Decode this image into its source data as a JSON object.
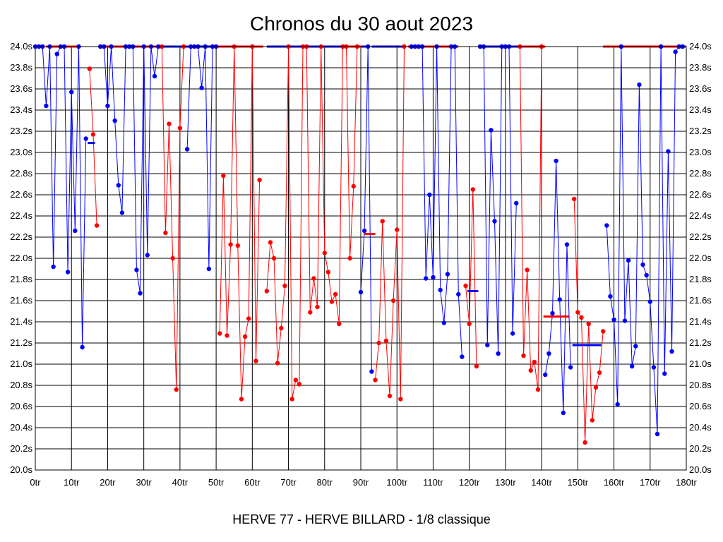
{
  "chart_data": {
    "type": "line",
    "title": "Chronos du 30 aout 2023",
    "subtitle": "HERVE 77 - HERVE BILLARD - 1/8 classique",
    "xlim": [
      0,
      180
    ],
    "ylim": [
      20.0,
      24.0
    ],
    "x_ticks": [
      0,
      10,
      20,
      30,
      40,
      50,
      60,
      70,
      80,
      90,
      100,
      110,
      120,
      130,
      140,
      150,
      160,
      170,
      180
    ],
    "x_tick_suffix": "tr",
    "y_ticks": [
      20.0,
      20.2,
      20.4,
      20.6,
      20.8,
      21.0,
      21.2,
      21.4,
      21.6,
      21.8,
      22.0,
      22.2,
      22.4,
      22.6,
      22.8,
      23.0,
      23.2,
      23.4,
      23.6,
      23.8,
      24.0
    ],
    "y_tick_suffix": "s",
    "grid": true,
    "colors": {
      "blue": "#0000ff",
      "red": "#ff0000",
      "grid": "#000000"
    },
    "segments": [
      {
        "color": "blue",
        "points": [
          [
            0,
            24.0
          ],
          [
            1,
            24.0
          ],
          [
            2,
            24.0
          ],
          [
            3,
            23.44
          ],
          [
            4,
            24.0
          ],
          [
            5,
            21.92
          ],
          [
            6,
            23.93
          ],
          [
            7,
            24.0
          ],
          [
            8,
            24.0
          ],
          [
            9,
            21.87
          ],
          [
            10,
            23.57
          ],
          [
            11,
            22.26
          ],
          [
            12,
            24.0
          ],
          [
            13,
            21.16
          ],
          [
            14,
            23.13
          ]
        ]
      },
      {
        "color": "red",
        "points": [
          [
            15,
            23.79
          ],
          [
            16,
            23.17
          ],
          [
            17,
            22.31
          ]
        ]
      },
      {
        "color": "blue",
        "points": [
          [
            18,
            24.0
          ],
          [
            19,
            24.0
          ],
          [
            20,
            23.44
          ],
          [
            21,
            24.0
          ],
          [
            22,
            23.3
          ],
          [
            23,
            22.69
          ],
          [
            24,
            22.43
          ],
          [
            25,
            24.0
          ],
          [
            26,
            24.0
          ],
          [
            27,
            24.0
          ],
          [
            28,
            21.89
          ],
          [
            29,
            21.67
          ],
          [
            30,
            24.0
          ],
          [
            31,
            22.03
          ],
          [
            32,
            24.0
          ],
          [
            33,
            23.72
          ],
          [
            34,
            24.0
          ]
        ]
      },
      {
        "color": "red",
        "points": [
          [
            35,
            24.0
          ],
          [
            36,
            22.24
          ],
          [
            37,
            23.27
          ],
          [
            38,
            22.0
          ],
          [
            39,
            20.76
          ],
          [
            40,
            23.23
          ],
          [
            41,
            24.0
          ]
        ]
      },
      {
        "color": "blue",
        "points": [
          [
            42,
            23.03
          ],
          [
            43,
            24.0
          ],
          [
            44,
            24.0
          ],
          [
            45,
            24.0
          ],
          [
            46,
            23.61
          ],
          [
            47,
            24.0
          ],
          [
            48,
            21.9
          ],
          [
            49,
            24.0
          ],
          [
            50,
            24.0
          ]
        ]
      },
      {
        "color": "red",
        "points": [
          [
            51,
            21.29
          ],
          [
            52,
            22.78
          ],
          [
            53,
            21.27
          ],
          [
            54,
            22.13
          ],
          [
            55,
            24.0
          ],
          [
            56,
            22.12
          ],
          [
            57,
            20.67
          ],
          [
            58,
            21.26
          ],
          [
            59,
            21.43
          ],
          [
            60,
            24.0
          ],
          [
            61,
            21.03
          ],
          [
            62,
            22.74
          ]
        ]
      },
      {
        "color": "red",
        "points": [
          [
            64,
            21.69
          ],
          [
            65,
            22.15
          ],
          [
            66,
            22.0
          ],
          [
            67,
            21.01
          ],
          [
            68,
            21.34
          ],
          [
            69,
            21.74
          ],
          [
            70,
            24.0
          ],
          [
            71,
            20.67
          ],
          [
            72,
            20.85
          ],
          [
            73,
            20.81
          ],
          [
            74,
            24.0
          ],
          [
            75,
            24.0
          ],
          [
            76,
            21.49
          ],
          [
            77,
            21.81
          ],
          [
            78,
            21.54
          ],
          [
            79,
            24.0
          ],
          [
            80,
            22.05
          ],
          [
            81,
            21.87
          ],
          [
            82,
            21.59
          ],
          [
            83,
            21.66
          ],
          [
            84,
            21.38
          ],
          [
            85,
            24.0
          ],
          [
            86,
            24.0
          ],
          [
            87,
            22.0
          ],
          [
            88,
            22.68
          ],
          [
            89,
            24.0
          ]
        ]
      },
      {
        "color": "blue",
        "points": [
          [
            90,
            21.68
          ],
          [
            91,
            22.26
          ],
          [
            92,
            24.0
          ],
          [
            93,
            20.93
          ]
        ]
      },
      {
        "color": "red",
        "points": [
          [
            94,
            20.85
          ],
          [
            95,
            21.2
          ],
          [
            96,
            22.35
          ],
          [
            97,
            21.22
          ],
          [
            98,
            20.7
          ],
          [
            99,
            21.6
          ],
          [
            100,
            22.27
          ],
          [
            101,
            20.67
          ],
          [
            102,
            24.0
          ]
        ]
      },
      {
        "color": "blue",
        "points": [
          [
            104,
            24.0
          ],
          [
            105,
            24.0
          ],
          [
            106,
            24.0
          ],
          [
            107,
            24.0
          ],
          [
            108,
            21.81
          ],
          [
            109,
            22.6
          ],
          [
            110,
            21.82
          ],
          [
            111,
            24.0
          ],
          [
            112,
            21.7
          ],
          [
            113,
            21.39
          ],
          [
            114,
            21.85
          ],
          [
            115,
            24.0
          ],
          [
            116,
            24.0
          ],
          [
            117,
            21.66
          ],
          [
            118,
            21.07
          ]
        ]
      },
      {
        "color": "red",
        "points": [
          [
            119,
            21.74
          ],
          [
            120,
            21.38
          ],
          [
            121,
            22.65
          ],
          [
            122,
            20.98
          ]
        ]
      },
      {
        "color": "blue",
        "points": [
          [
            123,
            24.0
          ],
          [
            124,
            24.0
          ],
          [
            125,
            21.18
          ],
          [
            126,
            23.21
          ],
          [
            127,
            22.35
          ],
          [
            128,
            21.1
          ],
          [
            129,
            24.0
          ],
          [
            130,
            24.0
          ],
          [
            131,
            24.0
          ],
          [
            132,
            21.29
          ],
          [
            133,
            22.52
          ]
        ]
      },
      {
        "color": "red",
        "points": [
          [
            134,
            24.0
          ],
          [
            135,
            21.08
          ],
          [
            136,
            21.89
          ],
          [
            137,
            20.94
          ],
          [
            138,
            21.02
          ],
          [
            139,
            20.76
          ],
          [
            140,
            24.0
          ]
        ]
      },
      {
        "color": "blue",
        "points": [
          [
            141,
            20.9
          ],
          [
            142,
            21.1
          ],
          [
            143,
            21.48
          ],
          [
            144,
            22.92
          ],
          [
            145,
            21.61
          ],
          [
            146,
            20.54
          ],
          [
            147,
            22.13
          ],
          [
            148,
            20.97
          ]
        ]
      },
      {
        "color": "red",
        "points": [
          [
            149,
            22.56
          ],
          [
            150,
            21.49
          ],
          [
            151,
            21.44
          ],
          [
            152,
            20.26
          ],
          [
            153,
            21.38
          ],
          [
            154,
            20.47
          ],
          [
            155,
            20.78
          ],
          [
            156,
            20.92
          ],
          [
            157,
            21.31
          ]
        ]
      },
      {
        "color": "blue",
        "points": [
          [
            158,
            22.31
          ],
          [
            159,
            21.64
          ],
          [
            160,
            21.42
          ],
          [
            161,
            20.62
          ],
          [
            162,
            24.0
          ],
          [
            163,
            21.41
          ],
          [
            164,
            21.98
          ],
          [
            165,
            20.98
          ],
          [
            166,
            21.17
          ],
          [
            167,
            23.64
          ],
          [
            168,
            21.94
          ],
          [
            169,
            21.84
          ],
          [
            170,
            21.59
          ],
          [
            171,
            20.97
          ],
          [
            172,
            20.34
          ],
          [
            173,
            24.0
          ],
          [
            174,
            20.91
          ],
          [
            175,
            23.01
          ],
          [
            176,
            21.12
          ],
          [
            177,
            23.95
          ],
          [
            178,
            24.0
          ],
          [
            179,
            24.0
          ]
        ]
      }
    ],
    "averages": [
      {
        "color": "blue",
        "x": [
          14.5,
          16.5
        ],
        "y": 23.09
      },
      {
        "color": "red",
        "x": [
          91,
          94
        ],
        "y": 22.23
      },
      {
        "color": "blue",
        "x": [
          119.5,
          122.5
        ],
        "y": 21.69
      },
      {
        "color": "red",
        "x": [
          140.5,
          147.5
        ],
        "y": 21.45
      },
      {
        "color": "blue",
        "x": [
          148.5,
          156.5
        ],
        "y": 21.18
      }
    ],
    "top_bars": [
      {
        "color": "red",
        "x": [
          3,
          12
        ]
      },
      {
        "color": "red",
        "x": [
          18,
          35
        ]
      },
      {
        "color": "blue",
        "x": [
          35,
          50
        ]
      },
      {
        "color": "red",
        "x": [
          49,
          63
        ]
      },
      {
        "color": "blue",
        "x": [
          64,
          92
        ]
      },
      {
        "color": "red",
        "x": [
          85,
          90
        ]
      },
      {
        "color": "blue",
        "x": [
          93,
          102
        ]
      },
      {
        "color": "red",
        "x": [
          103,
          117
        ]
      },
      {
        "color": "blue",
        "x": [
          123,
          134
        ]
      },
      {
        "color": "red",
        "x": [
          134,
          141
        ]
      },
      {
        "color": "red",
        "x": [
          157,
          180
        ]
      }
    ]
  }
}
